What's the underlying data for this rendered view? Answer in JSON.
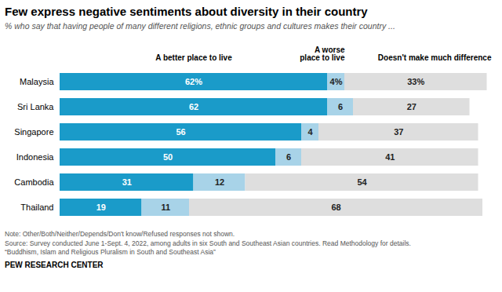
{
  "chart_data": {
    "type": "bar",
    "orientation": "horizontal",
    "stacked": true,
    "data_labels": true,
    "tick_labels": "y",
    "title": "Few express negative sentiments about diversity in their country",
    "subtitle": "% who say that having people of many different religions, ethnic groups and cultures makes their country ...",
    "categories": [
      "Malaysia",
      "Sri Lanka",
      "Singapore",
      "Indonesia",
      "Cambodia",
      "Thailand"
    ],
    "series": [
      {
        "name": "A better place to live",
        "color": "#1a9bc9",
        "values": [
          62,
          62,
          56,
          50,
          31,
          19
        ],
        "value_labels": [
          "62%",
          "62",
          "56",
          "50",
          "31",
          "19"
        ]
      },
      {
        "name": "A worse\nplace to live",
        "color": "#a8d3e8",
        "values": [
          4,
          6,
          4,
          6,
          12,
          11
        ],
        "value_labels": [
          "4%",
          "6",
          "4",
          "6",
          "12",
          "11"
        ]
      },
      {
        "name": "Doesn't make much difference",
        "color": "#dedede",
        "values": [
          33,
          27,
          37,
          41,
          54,
          68
        ],
        "value_labels": [
          "33%",
          "27",
          "37",
          "41",
          "54",
          "68"
        ]
      }
    ],
    "xlim": [
      0,
      100
    ],
    "notes": [
      "Note: Other/Both/Neither/Depends/Don't know/Refused responses not shown.",
      "Source: Survey conducted June 1-Sept. 4, 2022, among adults in six South and Southeast Asian countries. Read Methodology for details.",
      "“Buddhism, Islam and Religious Pluralism in South and Southeast Asia”"
    ],
    "footer": "PEW RESEARCH CENTER"
  }
}
